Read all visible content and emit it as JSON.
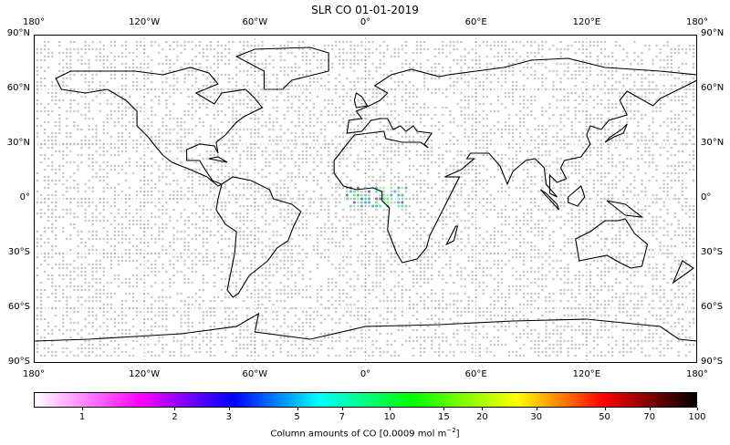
{
  "title": "SLR CO 01-01-2019",
  "lon_labels": [
    "180°",
    "120°W",
    "60°W",
    "0°",
    "60°E",
    "120°E",
    "180°"
  ],
  "lat_labels": [
    "90°N",
    "60°N",
    "30°N",
    "0°",
    "30°S",
    "60°S",
    "90°S"
  ],
  "colorbar": {
    "scale": "log",
    "ticks": [
      "1",
      "2",
      "3",
      "5",
      "7",
      "10",
      "15",
      "20",
      "30",
      "50",
      "70",
      "100"
    ],
    "label": "Column amounts of CO [0.0009 mol m",
    "label_sup": "−2",
    "label_end": "]",
    "colors": [
      "#ffffff",
      "#ff00ff",
      "#0000ff",
      "#00ffff",
      "#00ff00",
      "#ffff00",
      "#ff0000",
      "#000000"
    ]
  },
  "map": {
    "projection": "PlateCarree",
    "gridlines": true,
    "no_data_color": "#c8c8c8"
  }
}
